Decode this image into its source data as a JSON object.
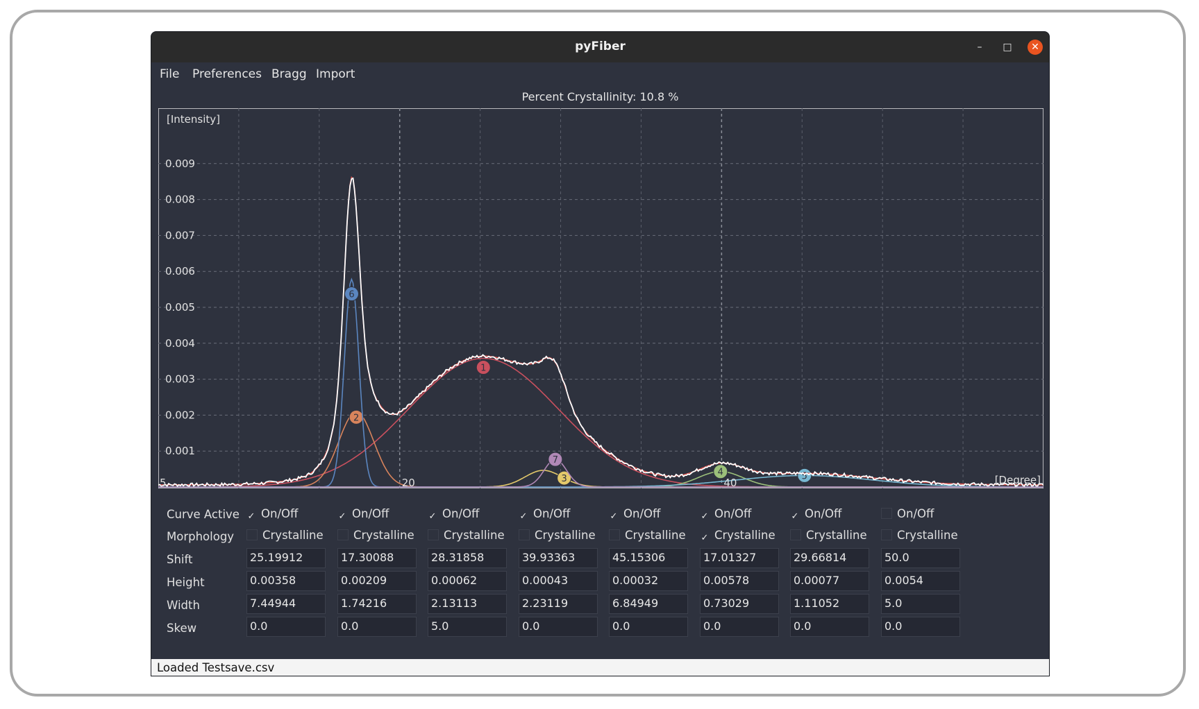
{
  "window": {
    "title": "pyFiber"
  },
  "window_controls": {
    "minimize": "–",
    "maximize": "□",
    "close": "✕"
  },
  "menu": [
    "File",
    "Preferences",
    "Bragg",
    "Import"
  ],
  "plot": {
    "header": "Percent Crystallinity: 10.8 %"
  },
  "chart_data": {
    "type": "line",
    "title": "Percent Crystallinity: 10.8 %",
    "ylabel": "[Intensity]",
    "xlabel": "[Degree]",
    "xlim": [
      5,
      60
    ],
    "ylim": [
      0,
      0.01
    ],
    "x_ticks": [
      "5",
      "20",
      "40"
    ],
    "y_ticks": [
      "0.009",
      "0.008",
      "0.007",
      "0.006",
      "0.005",
      "0.004",
      "0.003",
      "0.002",
      "0.001"
    ],
    "grid": true,
    "colors": {
      "data": "#ffffff",
      "fit": "#d9534f",
      "c1": "#c9505e",
      "c2": "#d8845c",
      "c3": "#e3c86a",
      "c4": "#9cc07a",
      "c5": "#78b8d2",
      "c6": "#5b86c0",
      "c7": "#b088b6"
    },
    "curves": [
      {
        "id": "1",
        "shift": 25.19912,
        "height": 0.00358,
        "width": 7.44944,
        "skew": 0.0
      },
      {
        "id": "2",
        "shift": 17.30088,
        "height": 0.00209,
        "width": 1.74216,
        "skew": 0.0
      },
      {
        "id": "3",
        "shift": 28.31858,
        "height": 0.00062,
        "width": 2.13113,
        "skew": 5.0
      },
      {
        "id": "4",
        "shift": 39.93363,
        "height": 0.00043,
        "width": 2.23119,
        "skew": 0.0
      },
      {
        "id": "5",
        "shift": 45.15306,
        "height": 0.00032,
        "width": 6.84949,
        "skew": 0.0
      },
      {
        "id": "6",
        "shift": 17.01327,
        "height": 0.00578,
        "width": 0.73029,
        "skew": 0.0
      },
      {
        "id": "7",
        "shift": 29.66814,
        "height": 0.00077,
        "width": 1.11052,
        "skew": 0.0
      }
    ]
  },
  "params": {
    "labels": {
      "active": "Curve Active",
      "morphology": "Morphology",
      "shift": "Shift",
      "height": "Height",
      "width": "Width",
      "skew": "Skew"
    },
    "onoff_label": "On/Off",
    "crystalline_label": "Crystalline",
    "columns": [
      {
        "active": true,
        "crystalline": false,
        "shift": "25.19912",
        "height": "0.00358",
        "width": "7.44944",
        "skew": "0.0"
      },
      {
        "active": true,
        "crystalline": false,
        "shift": "17.30088",
        "height": "0.00209",
        "width": "1.74216",
        "skew": "0.0"
      },
      {
        "active": true,
        "crystalline": false,
        "shift": "28.31858",
        "height": "0.00062",
        "width": "2.13113",
        "skew": "5.0"
      },
      {
        "active": true,
        "crystalline": false,
        "shift": "39.93363",
        "height": "0.00043",
        "width": "2.23119",
        "skew": "0.0"
      },
      {
        "active": true,
        "crystalline": false,
        "shift": "45.15306",
        "height": "0.00032",
        "width": "6.84949",
        "skew": "0.0"
      },
      {
        "active": true,
        "crystalline": true,
        "shift": "17.01327",
        "height": "0.00578",
        "width": "0.73029",
        "skew": "0.0"
      },
      {
        "active": true,
        "crystalline": false,
        "shift": "29.66814",
        "height": "0.00077",
        "width": "1.11052",
        "skew": "0.0"
      },
      {
        "active": false,
        "crystalline": false,
        "shift": "50.0",
        "height": "0.0054",
        "width": "5.0",
        "skew": "0.0"
      }
    ]
  },
  "status": "Loaded Testsave.csv"
}
